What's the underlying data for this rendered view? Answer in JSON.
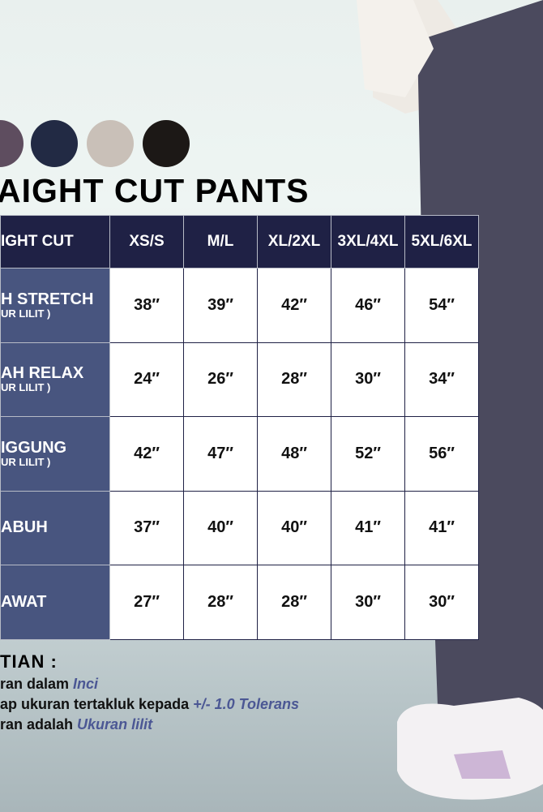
{
  "swatches": [
    "#5e4d5f",
    "#222a44",
    "#c9c0b8",
    "#1c1816"
  ],
  "title": "AIGHT CUT PANTS",
  "table": {
    "header": [
      "IGHT CUT",
      "XS/S",
      "M/L",
      "XL/2XL",
      "3XL/4XL",
      "5XL/6XL"
    ],
    "rows": [
      {
        "label": "H STRETCH",
        "sub": "UR LILIT )",
        "values": [
          "38″",
          "39″",
          "42″",
          "46″",
          "54″"
        ]
      },
      {
        "label": "AH RELAX",
        "sub": "UR LILIT )",
        "values": [
          "24″",
          "26″",
          "28″",
          "30″",
          "34″"
        ]
      },
      {
        "label": "IGGUNG",
        "sub": "UR LILIT )",
        "values": [
          "42″",
          "47″",
          "48″",
          "52″",
          "56″"
        ]
      },
      {
        "label": "ABUH",
        "sub": "",
        "values": [
          "37″",
          "40″",
          "40″",
          "41″",
          "41″"
        ]
      },
      {
        "label": "AWAT",
        "sub": "",
        "values": [
          "27″",
          "28″",
          "28″",
          "30″",
          "30″"
        ]
      }
    ]
  },
  "notes": {
    "heading": "TIAN :",
    "lines": [
      {
        "text": "ran dalam ",
        "em": "Inci"
      },
      {
        "text": "ap ukuran tertakluk kepada ",
        "em": "+/- 1.0 Tolerans"
      },
      {
        "text": "ran adalah ",
        "em": "Ukuran lilit"
      }
    ]
  },
  "colors": {
    "header": "#1f2145",
    "label_cell": "#48557f",
    "accent_text": "#4b5794"
  }
}
